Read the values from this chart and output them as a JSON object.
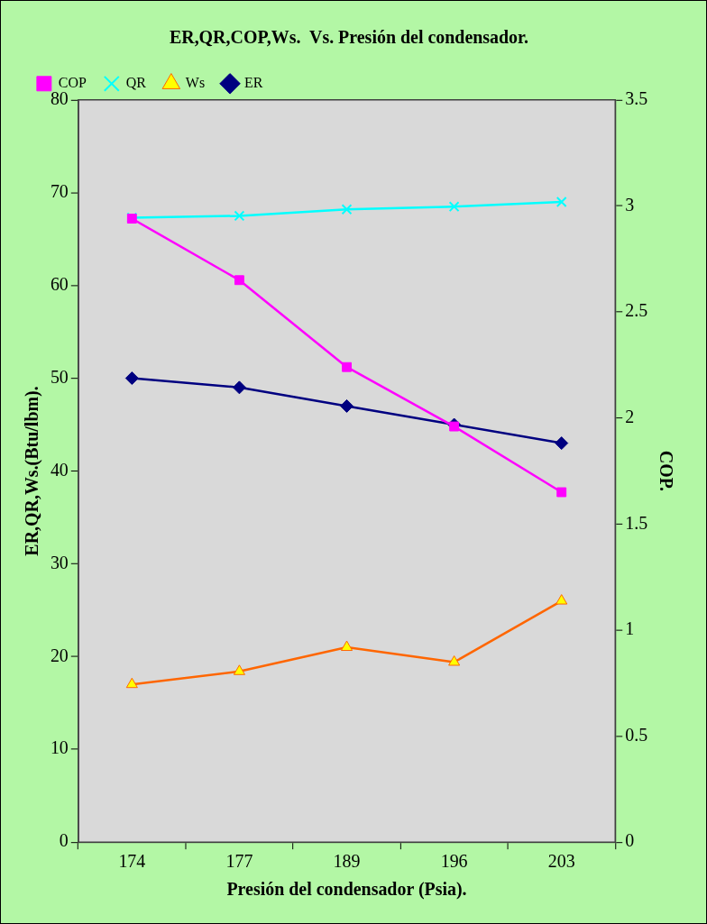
{
  "chart_data": {
    "type": "line",
    "title": "ER,QR,COP,Ws.  Vs. Presión del condensador.",
    "xlabel": "Presión del condensador (Psia).",
    "ylabel": "ER,QR,Ws.(Btu/lbm).",
    "y2label": "COP.",
    "categories": [
      "174",
      "177",
      "189",
      "196",
      "203"
    ],
    "series": [
      {
        "name": "ER",
        "color": "#000080",
        "marker": "diamond",
        "values": [
          50,
          49,
          47,
          45,
          43
        ]
      },
      {
        "name": "Ws",
        "color": "#ff6600",
        "marker": "triangle",
        "values": [
          17,
          18.4,
          21,
          19.4,
          26
        ]
      },
      {
        "name": "QR",
        "color": "#00ffff",
        "marker": "cross",
        "values": [
          67.3,
          67.5,
          68.2,
          68.5,
          69
        ]
      },
      {
        "name": "COP",
        "color": "#ff00ff",
        "marker": "square",
        "axis": "y2",
        "values": [
          2.94,
          2.65,
          2.24,
          1.96,
          1.65
        ]
      }
    ],
    "ylim": [
      0,
      80
    ],
    "yticks": [
      0,
      10,
      20,
      30,
      40,
      50,
      60,
      70,
      80
    ],
    "y2lim": [
      0,
      3.5
    ],
    "y2ticks": [
      0,
      0.5,
      1,
      1.5,
      2,
      2.5,
      3,
      3.5
    ],
    "grid": false,
    "legend": "top left"
  }
}
